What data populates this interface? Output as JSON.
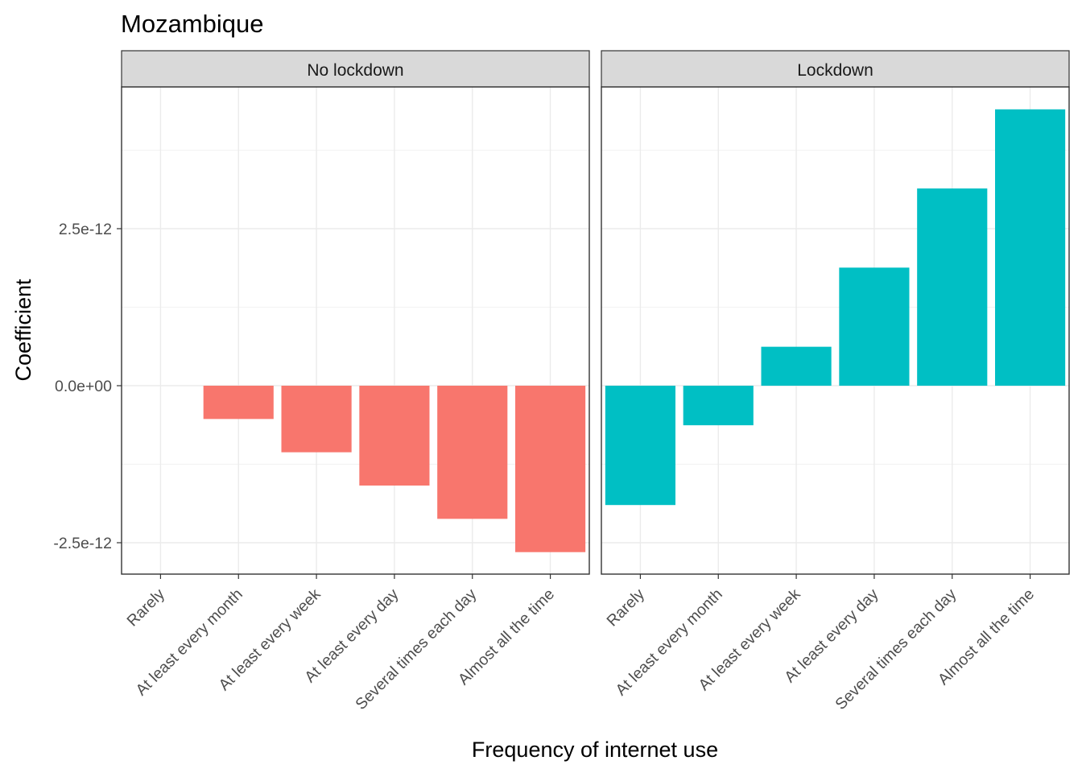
{
  "chart_data": {
    "type": "bar",
    "title": "Mozambique",
    "xlabel": "Frequency of internet use",
    "ylabel": "Coefficient",
    "categories": [
      "Rarely",
      "At least every month",
      "At least every week",
      "At least every day",
      "Several times each day",
      "Almost all the time"
    ],
    "yticks": [
      -2.5e-12,
      0,
      2.5e-12
    ],
    "ytick_labels": [
      "-2.5e-12",
      "0.0e+00",
      "2.5e-12"
    ],
    "ylim": [
      -3e-12,
      4.75e-12
    ],
    "grid": true,
    "legend": "none",
    "panels": [
      {
        "label": "No lockdown",
        "color": "#F8766D",
        "values": [
          null,
          -5.3e-13,
          -1.06e-12,
          -1.59e-12,
          -2.12e-12,
          -2.65e-12
        ]
      },
      {
        "label": "Lockdown",
        "color": "#00BFC4",
        "values": [
          -1.9e-12,
          -6.3e-13,
          6.2e-13,
          1.88e-12,
          3.14e-12,
          4.4e-12
        ]
      }
    ]
  }
}
